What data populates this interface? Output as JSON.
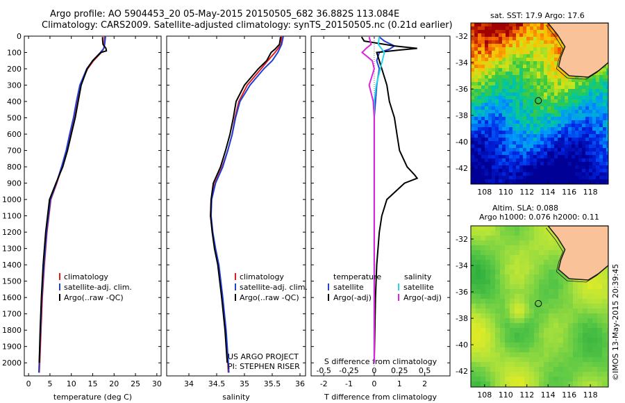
{
  "header": {
    "line1": "Argo profile: AO 5904453_20 05-May-2015 20150505_682 36.882S 113.084E",
    "line2": "Climatology: CARS2009. Satellite-adjusted climatology: synTS_20150505.nc (0.21d earlier)"
  },
  "credits": {
    "project": "US ARGO PROJECT",
    "pi": "PI: STEPHEN RISER",
    "stamp": "©IMOS 13-May-2015 20:39:45"
  },
  "colors": {
    "climatology": "#e41a1c",
    "satellite": "#1f3fd6",
    "argo": "#000000",
    "salinity_satellite": "#22d8e8",
    "salinity_argo": "#e020e0",
    "land": "#f9c299",
    "coast": "#1a1a1a"
  },
  "chart_data": [
    {
      "type": "line",
      "name": "temperature-profile",
      "xlabel": "temperature (deg C)",
      "ylabel": "",
      "xlim": [
        -1,
        31
      ],
      "ylim": [
        2080,
        0
      ],
      "xticks": [
        "0",
        "5",
        "10",
        "15",
        "20",
        "25",
        "30"
      ],
      "yticks": [
        "0",
        "100",
        "200",
        "300",
        "400",
        "500",
        "600",
        "700",
        "800",
        "900",
        "1000",
        "1100",
        "1200",
        "1300",
        "1400",
        "1500",
        "1600",
        "1700",
        "1800",
        "1900",
        "2000"
      ],
      "legend": [
        "climatology",
        "satellite-adj. clim.",
        "Argo(..raw -QC)"
      ],
      "series": [
        {
          "name": "climatology",
          "depth": [
            0,
            50,
            75,
            100,
            150,
            200,
            300,
            400,
            500,
            600,
            700,
            800,
            900,
            1000,
            1200,
            1400,
            1600,
            1800,
            2000,
            2060
          ],
          "values": [
            17.8,
            17.7,
            17.6,
            17.0,
            15.2,
            13.8,
            12.1,
            11.3,
            10.6,
            9.7,
            8.9,
            7.8,
            6.6,
            5.2,
            4.3,
            3.7,
            3.2,
            2.9,
            2.6,
            2.5
          ]
        },
        {
          "name": "satellite-adj. clim.",
          "depth": [
            0,
            50,
            75,
            100,
            150,
            200,
            300,
            400,
            500,
            600,
            700,
            800,
            900,
            1000,
            1200,
            1400,
            1600,
            1800,
            2000,
            2060
          ],
          "values": [
            18.0,
            17.8,
            17.6,
            16.8,
            15.0,
            13.6,
            12.0,
            11.2,
            10.5,
            9.6,
            8.8,
            7.7,
            6.5,
            5.1,
            4.2,
            3.6,
            3.1,
            2.8,
            2.5,
            2.4
          ]
        },
        {
          "name": "Argo(..raw -QC)",
          "depth": [
            5,
            20,
            50,
            75,
            90,
            100,
            150,
            200,
            300,
            400,
            500,
            600,
            700,
            800,
            900,
            1000,
            1200,
            1400,
            1600,
            1800,
            2000
          ],
          "values": [
            17.3,
            17.3,
            17.4,
            18.1,
            18.2,
            16.9,
            15.0,
            13.7,
            12.3,
            11.6,
            10.9,
            10.0,
            9.1,
            8.0,
            6.4,
            4.9,
            4.0,
            3.4,
            3.0,
            2.7,
            2.5
          ]
        }
      ]
    },
    {
      "type": "line",
      "name": "salinity-profile",
      "xlabel": "salinity",
      "xlim": [
        33.6,
        36.1
      ],
      "ylim": [
        2080,
        0
      ],
      "xticks": [
        "34",
        "34.5",
        "35",
        "35.5",
        "36"
      ],
      "legend": [
        "climatology",
        "satellite-adj. clim.",
        "Argo(..raw -QC)"
      ],
      "series": [
        {
          "name": "climatology",
          "depth": [
            0,
            50,
            100,
            150,
            200,
            300,
            400,
            500,
            600,
            700,
            800,
            900,
            1000,
            1100,
            1200,
            1300,
            1400,
            1600,
            1800,
            2000,
            2060
          ],
          "values": [
            35.67,
            35.66,
            35.55,
            35.42,
            35.3,
            35.05,
            34.9,
            34.83,
            34.78,
            34.7,
            34.6,
            34.47,
            34.4,
            34.39,
            34.42,
            34.47,
            34.53,
            34.6,
            34.66,
            34.7,
            34.71
          ]
        },
        {
          "name": "satellite-adj. clim.",
          "depth": [
            0,
            50,
            100,
            150,
            200,
            300,
            400,
            500,
            600,
            700,
            800,
            900,
            1000,
            1100,
            1200,
            1300,
            1400,
            1600,
            1800,
            2000,
            2060
          ],
          "values": [
            35.7,
            35.67,
            35.6,
            35.5,
            35.35,
            35.1,
            34.92,
            34.84,
            34.78,
            34.7,
            34.61,
            34.48,
            34.41,
            34.4,
            34.43,
            34.48,
            34.54,
            34.61,
            34.67,
            34.71,
            34.72
          ]
        },
        {
          "name": "Argo(..raw -QC)",
          "depth": [
            5,
            50,
            80,
            100,
            150,
            200,
            300,
            400,
            500,
            600,
            700,
            800,
            900,
            1000,
            1100,
            1200,
            1300,
            1400,
            1600,
            1800,
            2000
          ],
          "values": [
            35.65,
            35.63,
            35.55,
            35.48,
            35.4,
            35.25,
            35.0,
            34.85,
            34.8,
            34.74,
            34.66,
            34.57,
            34.44,
            34.4,
            34.39,
            34.42,
            34.46,
            34.52,
            34.59,
            34.65,
            34.69
          ]
        }
      ]
    },
    {
      "type": "line",
      "name": "difference-profile",
      "xlabel": "T difference from climatology",
      "xlabel_top": "S difference from climatology",
      "xlim": [
        -2.5,
        3
      ],
      "ylim": [
        2080,
        0
      ],
      "xticks": [
        "-2",
        "-1",
        "0",
        "1",
        "2"
      ],
      "xticks_top": [
        "-0.5",
        "-0.25",
        "0",
        "0.25",
        "0.5"
      ],
      "legend_temperature_title": "temperature",
      "legend_salinity_title": "salinity",
      "legend_temperature": [
        "satellite",
        "Argo(-adj)"
      ],
      "legend_salinity": [
        "satellite",
        "Argo(-adj)"
      ],
      "series": [
        {
          "name": "temperature satellite",
          "depth": [
            5,
            30,
            60,
            80,
            100,
            150,
            200,
            300,
            400,
            500,
            700,
            900,
            1200,
            1600,
            2000
          ],
          "values": [
            0.2,
            0.4,
            0.8,
            0.6,
            0.2,
            0.1,
            0.2,
            0.1,
            0.05,
            0.0,
            0.0,
            0.0,
            0.0,
            0.0,
            0.0
          ]
        },
        {
          "name": "temperature Argo(-adj)",
          "depth": [
            5,
            30,
            60,
            75,
            85,
            100,
            150,
            200,
            300,
            400,
            500,
            600,
            700,
            800,
            850,
            870,
            900,
            1000,
            1100,
            1200,
            1400,
            1600,
            2000
          ],
          "values": [
            -0.5,
            -0.4,
            0.8,
            1.7,
            1.0,
            0.1,
            0.2,
            0.3,
            0.5,
            0.6,
            0.8,
            0.9,
            1.0,
            1.3,
            1.6,
            1.7,
            1.2,
            0.5,
            0.3,
            0.2,
            0.1,
            0.05,
            0.0
          ]
        },
        {
          "name": "salinity satellite",
          "depth": [
            5,
            50,
            100,
            200,
            300,
            400,
            500,
            700,
            900,
            1200,
            1600,
            2000
          ],
          "values": [
            0.05,
            0.04,
            0.1,
            0.06,
            0.02,
            0.0,
            0.0,
            0.0,
            0.0,
            0.0,
            0.0,
            0.0
          ]
        },
        {
          "name": "salinity Argo(-adj)",
          "depth": [
            5,
            50,
            75,
            100,
            150,
            200,
            300,
            400,
            500,
            700,
            900,
            1200,
            1600,
            2000
          ],
          "values": [
            -0.05,
            -0.03,
            -0.08,
            -0.12,
            -0.02,
            0.0,
            -0.05,
            -0.01,
            0.0,
            0.0,
            0.0,
            0.0,
            0.0,
            0.0
          ]
        }
      ]
    },
    {
      "type": "heatmap",
      "name": "sst-map",
      "title": "sat. SST: 17.9 Argo: 17.6",
      "xticks": [
        "108",
        "110",
        "112",
        "114",
        "116",
        "118"
      ],
      "yticks": [
        "-32",
        "-34",
        "-36",
        "-38",
        "-40",
        "-42"
      ],
      "xlim": [
        106.7,
        119.7
      ],
      "ylim": [
        -43.2,
        -31.0
      ],
      "marker": {
        "lon": 113.084,
        "lat": -36.882
      }
    },
    {
      "type": "heatmap",
      "name": "sla-map",
      "title_line1": "Altim. SLA: 0.088",
      "title_line2": "Argo h1000: 0.076 h2000: 0.11",
      "xticks": [
        "108",
        "110",
        "112",
        "114",
        "116",
        "118"
      ],
      "yticks": [
        "-32",
        "-34",
        "-36",
        "-38",
        "-40",
        "-42"
      ],
      "xlim": [
        106.7,
        119.7
      ],
      "ylim": [
        -43.2,
        -31.0
      ],
      "marker": {
        "lon": 113.084,
        "lat": -36.882
      }
    }
  ]
}
